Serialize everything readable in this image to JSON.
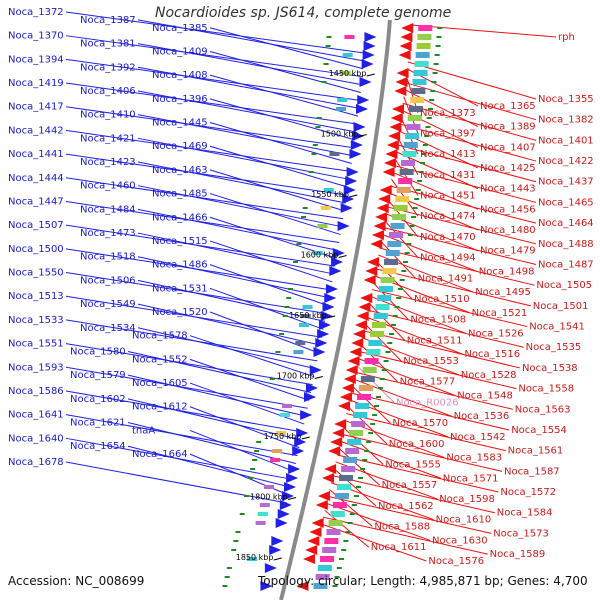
{
  "title": "Nocardioides sp. JS614, complete genome",
  "accession": "Accession: NC_008699",
  "topology": "Topology: circular; Length: 4,985,871 bp; Genes: 4,700",
  "colors": {
    "forward_strand": "#2020e8",
    "reverse_strand": "#ee1111",
    "backbone": "#8a8a8a",
    "gc_tick": "#1f8a1f",
    "rna_gene": "#e090c0"
  },
  "ticks": [
    "1450 kbp",
    "1500 kbp",
    "1550 kbp",
    "1600 kbp",
    "1650 kbp",
    "1700 kbp",
    "1750 kbp",
    "1800 kbp",
    "1850 kbp"
  ],
  "left_labels": [
    "Noca_1372",
    "Noca_1387",
    "Noca_1385",
    "Noca_1370",
    "Noca_1381",
    "Noca_1409",
    "Noca_1394",
    "Noca_1392",
    "Noca_1408",
    "Noca_1419",
    "Noca_1406",
    "Noca_1396",
    "Noca_1417",
    "Noca_1410",
    "Noca_1445",
    "Noca_1442",
    "Noca_1421",
    "Noca_1469",
    "Noca_1441",
    "Noca_1423",
    "Noca_1463",
    "Noca_1444",
    "Noca_1460",
    "Noca_1485",
    "Noca_1447",
    "Noca_1484",
    "Noca_1466",
    "Noca_1507",
    "Noca_1473",
    "Noca_1515",
    "Noca_1500",
    "Noca_1518",
    "Noca_1486",
    "Noca_1550",
    "Noca_1506",
    "Noca_1531",
    "Noca_1513",
    "Noca_1549",
    "Noca_1520",
    "Noca_1533",
    "Noca_1534",
    "Noca_1578",
    "Noca_1551",
    "Noca_1580",
    "Noca_1552",
    "Noca_1593",
    "Noca_1579",
    "Noca_1605",
    "Noca_1586",
    "Noca_1602",
    "Noca_1612",
    "Noca_1641",
    "Noca_1621",
    "tnaA",
    "Noca_1640",
    "Noca_1654",
    "Noca_1664",
    "Noca_1678"
  ],
  "right_labels": [
    "rph",
    "Noca_1355",
    "Noca_1365",
    "Noca_1373",
    "Noca_1382",
    "Noca_1389",
    "Noca_1397",
    "Noca_1401",
    "Noca_1407",
    "Noca_1413",
    "Noca_1422",
    "Noca_1425",
    "Noca_1431",
    "Noca_1437",
    "Noca_1443",
    "Noca_1451",
    "Noca_1465",
    "Noca_1456",
    "Noca_1474",
    "Noca_1464",
    "Noca_1480",
    "Noca_1470",
    "Noca_1488",
    "Noca_1479",
    "Noca_1494",
    "Noca_1487",
    "Noca_1498",
    "Noca_1491",
    "Noca_1505",
    "Noca_1495",
    "Noca_1510",
    "Noca_1501",
    "Noca_1521",
    "Noca_1508",
    "Noca_1541",
    "Noca_1526",
    "Noca_1511",
    "Noca_1535",
    "Noca_1516",
    "Noca_1553",
    "Noca_1538",
    "Noca_1528",
    "Noca_1577",
    "Noca_1558",
    "Noca_1548",
    "Noca_R0026",
    "Noca_1563",
    "Noca_1536",
    "Noca_1570",
    "Noca_1554",
    "Noca_1542",
    "Noca_1600",
    "Noca_1561",
    "Noca_1583",
    "Noca_1555",
    "Noca_1587",
    "Noca_1571",
    "Noca_1557",
    "Noca_1572",
    "Noca_1598",
    "Noca_1562",
    "Noca_1584",
    "Noca_1610",
    "Noca_1588",
    "Noca_1573",
    "Noca_1630",
    "Noca_1611",
    "Noca_1589",
    "Noca_1576"
  ]
}
